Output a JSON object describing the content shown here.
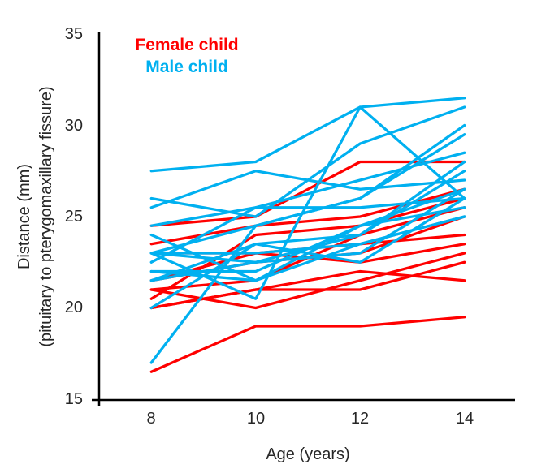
{
  "colors": {
    "female": "#FF0000",
    "male": "#00B0F0",
    "axis_line": "#000000",
    "text": "#262626"
  },
  "chart_data": {
    "type": "line",
    "x": [
      8,
      10,
      12,
      14
    ],
    "xticks": [
      8,
      10,
      12,
      14
    ],
    "yticks": [
      15,
      20,
      25,
      30,
      35
    ],
    "ylim": [
      15,
      35
    ],
    "xlabel": "Age (years)",
    "ylabel_line1": "Distance (mm)",
    "ylabel_line2": "(pituitary to  pterygomaxillary fissure)",
    "grid": false,
    "legend_position": "top-left-inside",
    "groups": [
      {
        "label": "Female child",
        "color": "#FF0000",
        "lines": [
          [
            21.0,
            20.0,
            21.5,
            23.0
          ],
          [
            21.0,
            21.5,
            24.0,
            25.5
          ],
          [
            20.5,
            24.0,
            24.5,
            26.0
          ],
          [
            23.5,
            24.5,
            25.0,
            26.5
          ],
          [
            21.5,
            23.0,
            22.5,
            23.5
          ],
          [
            20.0,
            21.0,
            21.0,
            22.5
          ],
          [
            21.5,
            22.5,
            23.0,
            25.0
          ],
          [
            23.0,
            23.0,
            23.5,
            24.0
          ],
          [
            20.0,
            21.0,
            22.0,
            21.5
          ],
          [
            16.5,
            19.0,
            19.0,
            19.5
          ],
          [
            24.5,
            25.0,
            28.0,
            28.0
          ]
        ]
      },
      {
        "label": "Male child",
        "color": "#00B0F0",
        "lines": [
          [
            26.0,
            25.0,
            29.0,
            31.0
          ],
          [
            21.5,
            22.5,
            23.0,
            26.5
          ],
          [
            23.0,
            22.5,
            24.0,
            27.5
          ],
          [
            25.5,
            27.5,
            26.5,
            27.0
          ],
          [
            20.0,
            23.5,
            22.5,
            26.0
          ],
          [
            24.5,
            25.5,
            27.0,
            28.5
          ],
          [
            22.0,
            22.0,
            24.5,
            26.5
          ],
          [
            24.0,
            21.5,
            24.5,
            25.5
          ],
          [
            23.0,
            20.5,
            31.0,
            26.0
          ],
          [
            27.5,
            28.0,
            31.0,
            31.5
          ],
          [
            23.0,
            23.0,
            23.5,
            25.0
          ],
          [
            21.5,
            23.5,
            24.0,
            28.0
          ],
          [
            17.0,
            24.5,
            26.0,
            29.5
          ],
          [
            22.5,
            25.5,
            25.5,
            26.0
          ],
          [
            23.0,
            24.5,
            26.0,
            30.0
          ],
          [
            22.0,
            21.5,
            23.5,
            25.0
          ]
        ]
      }
    ]
  }
}
